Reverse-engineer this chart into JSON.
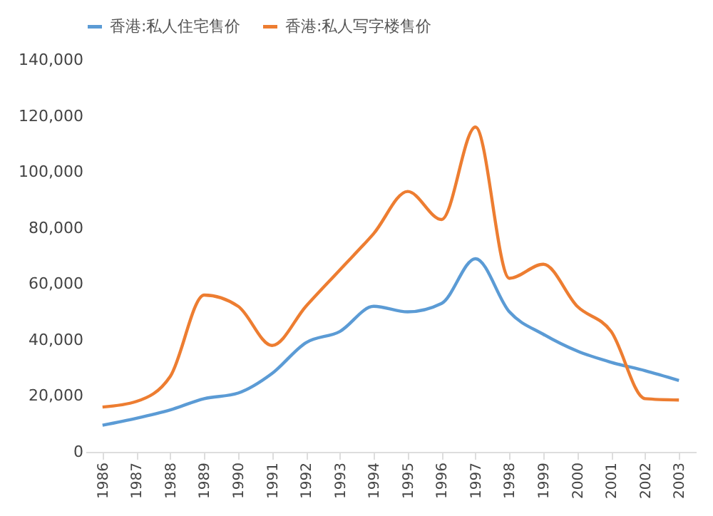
{
  "chart_data": {
    "type": "line",
    "categories": [
      "1986",
      "1987",
      "1988",
      "1989",
      "1990",
      "1991",
      "1992",
      "1993",
      "1994",
      "1995",
      "1996",
      "1997",
      "1998",
      "1999",
      "2000",
      "2001",
      "2002",
      "2003"
    ],
    "series": [
      {
        "name": "香港:私人住宅售价",
        "color": "#5b9bd5",
        "values": [
          9500,
          12000,
          15000,
          19000,
          21000,
          28000,
          39000,
          43000,
          52000,
          50000,
          53000,
          69000,
          50000,
          42000,
          36000,
          32000,
          29000,
          25500
        ]
      },
      {
        "name": "香港:私人写字楼售价",
        "color": "#ed7d31",
        "values": [
          16000,
          18000,
          27000,
          56000,
          52000,
          38000,
          52000,
          65000,
          78000,
          93000,
          83000,
          116000,
          62000,
          67000,
          52000,
          43000,
          19000,
          18500
        ]
      }
    ],
    "ylim": [
      0,
      140000
    ],
    "yticks": [
      0,
      {
        "value": 20000,
        "label": "20,000"
      },
      {
        "value": 40000,
        "label": "40,000"
      },
      {
        "value": 60000,
        "label": "60,000"
      },
      {
        "value": 80000,
        "label": "80,000"
      },
      {
        "value": 100000,
        "label": "100,000"
      },
      {
        "value": 120000,
        "label": "120,000"
      },
      {
        "value": 140000,
        "label": "140,000"
      }
    ],
    "legend": "top",
    "grid": false,
    "marker": "none",
    "line_style": "solid"
  }
}
